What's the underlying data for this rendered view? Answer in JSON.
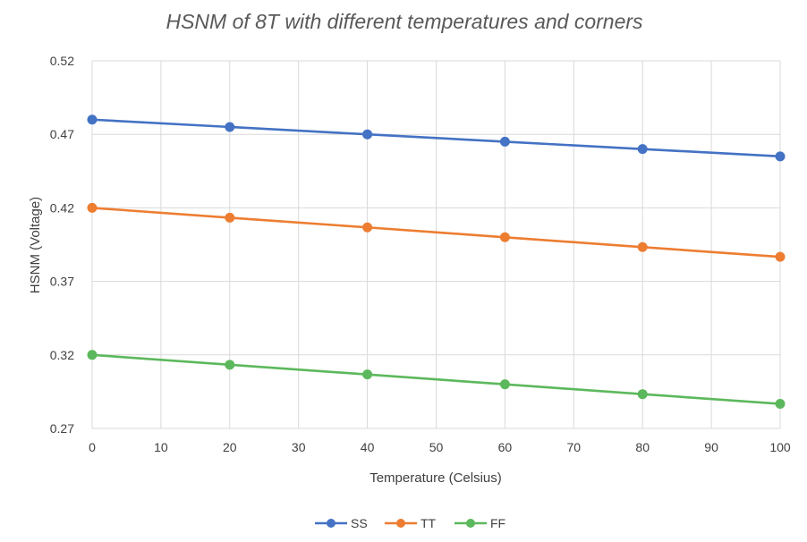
{
  "chart_data": {
    "type": "line",
    "title": "HSNM of 8T with different temperatures and corners",
    "xlabel": "Temperature (Celsius)",
    "ylabel": "HSNM (Voltage)",
    "xlim": [
      0,
      100
    ],
    "ylim": [
      0.27,
      0.52
    ],
    "x_ticks": [
      0,
      10,
      20,
      30,
      40,
      50,
      60,
      70,
      80,
      90,
      100
    ],
    "y_ticks": [
      "0.27",
      "0.32",
      "0.37",
      "0.42",
      "0.47",
      "0.52"
    ],
    "x": [
      0,
      20,
      40,
      60,
      80,
      100
    ],
    "grid": true,
    "legend_position": "bottom",
    "series": [
      {
        "name": "SS",
        "color": "#4472c4",
        "values": [
          0.48,
          0.475,
          0.47,
          0.465,
          0.46,
          0.455
        ]
      },
      {
        "name": "TT",
        "color": "#ed7d31",
        "values": [
          0.42,
          0.4133,
          0.4067,
          0.4,
          0.3933,
          0.3867
        ]
      },
      {
        "name": "FF",
        "color": "#5cb85c",
        "values": [
          0.32,
          0.3133,
          0.3067,
          0.3,
          0.2933,
          0.2867
        ]
      }
    ]
  }
}
